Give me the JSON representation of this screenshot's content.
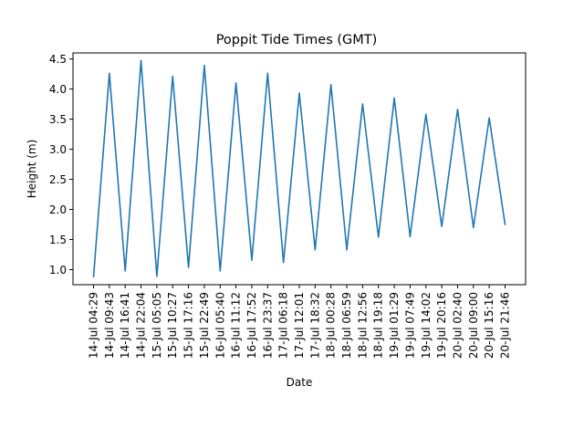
{
  "chart_data": {
    "type": "line",
    "title": "Poppit Tide Times (GMT)",
    "xlabel": "Date",
    "ylabel": "Height (m)",
    "ylim": [
      0.75,
      4.6
    ],
    "yticks": [
      "1.0",
      "1.5",
      "2.0",
      "2.5",
      "3.0",
      "3.5",
      "4.0",
      "4.5"
    ],
    "grid": false,
    "legend": "none",
    "line_color": "#1f77b4",
    "categories": [
      "14-Jul 04:29",
      "14-Jul 09:43",
      "14-Jul 16:41",
      "14-Jul 22:04",
      "15-Jul 05:05",
      "15-Jul 10:27",
      "15-Jul 17:16",
      "15-Jul 22:49",
      "16-Jul 05:40",
      "16-Jul 11:12",
      "16-Jul 17:52",
      "16-Jul 23:37",
      "17-Jul 06:18",
      "17-Jul 12:01",
      "17-Jul 18:32",
      "18-Jul 00:28",
      "18-Jul 06:59",
      "18-Jul 12:56",
      "18-Jul 19:18",
      "19-Jul 01:29",
      "19-Jul 07:49",
      "19-Jul 14:02",
      "19-Jul 20:16",
      "20-Jul 02:40",
      "20-Jul 09:00",
      "20-Jul 15:16",
      "20-Jul 21:46"
    ],
    "series": [
      {
        "values": [
          0.88,
          4.26,
          0.98,
          4.47,
          0.89,
          4.21,
          1.04,
          4.39,
          0.98,
          4.1,
          1.16,
          4.26,
          1.12,
          3.93,
          1.33,
          4.07,
          1.33,
          3.75,
          1.54,
          3.85,
          1.55,
          3.58,
          1.72,
          3.66,
          1.7,
          3.52,
          1.75
        ]
      }
    ]
  }
}
